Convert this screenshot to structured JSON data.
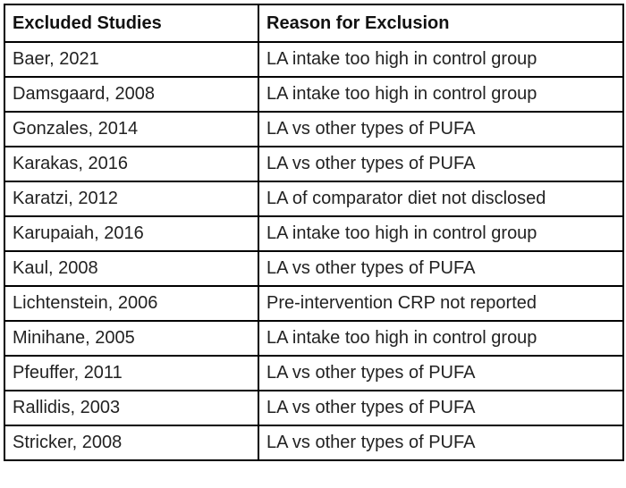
{
  "table": {
    "header": [
      "Excluded Studies",
      "Reason for Exclusion"
    ],
    "rows": [
      [
        "Baer, 2021",
        "LA intake too high in control group"
      ],
      [
        "Damsgaard, 2008",
        "LA intake too high in control group"
      ],
      [
        "Gonzales, 2014",
        "LA vs other types of PUFA"
      ],
      [
        "Karakas, 2016",
        "LA vs other types of PUFA"
      ],
      [
        "Karatzi, 2012",
        "LA of comparator diet not disclosed"
      ],
      [
        "Karupaiah, 2016",
        "LA intake too high in control group"
      ],
      [
        "Kaul, 2008",
        "LA vs other types of PUFA"
      ],
      [
        "Lichtenstein, 2006",
        "Pre-intervention CRP not reported"
      ],
      [
        "Minihane, 2005",
        "LA intake too high in control group"
      ],
      [
        "Pfeuffer, 2011",
        "LA vs other types of PUFA"
      ],
      [
        "Rallidis, 2003",
        "LA vs other types of PUFA"
      ],
      [
        "Stricker, 2008",
        "LA vs other types of PUFA"
      ]
    ]
  }
}
